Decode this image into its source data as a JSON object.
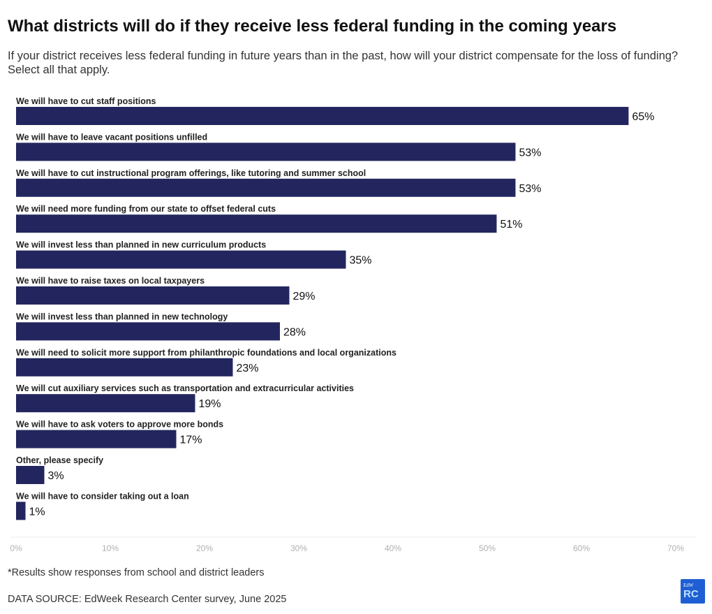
{
  "header": {
    "title": "What districts will do if they receive less federal funding in the coming years",
    "subtitle": "If your district receives less federal funding in future years than in the past, how will your district compensate for the loss of funding? Select all that apply."
  },
  "chart_data": {
    "type": "bar",
    "orientation": "horizontal",
    "title": "What districts will do if they receive less federal funding in the coming years",
    "categories": [
      "We will have to cut staff positions",
      "We will have to leave vacant positions unfilled",
      "We will have to cut instructional program offerings, like tutoring and summer school",
      "We will need more funding from our state to offset federal cuts",
      "We will invest less than planned in new curriculum products",
      "We will have to raise taxes on local taxpayers",
      "We will invest less than planned in new technology",
      "We will need to solicit more support from philanthropic foundations and local organizations",
      "We will cut auxiliary services such as transportation and extracurricular activities",
      "We will have to ask voters to approve more bonds",
      "Other, please specify",
      "We will have to consider taking out a loan"
    ],
    "values": [
      65,
      53,
      53,
      51,
      35,
      29,
      28,
      23,
      19,
      17,
      3,
      1
    ],
    "value_labels": [
      "65%",
      "53%",
      "53%",
      "51%",
      "35%",
      "29%",
      "28%",
      "23%",
      "19%",
      "17%",
      "3%",
      "1%"
    ],
    "xlim": [
      0,
      70
    ],
    "xticks": [
      0,
      10,
      20,
      30,
      40,
      50,
      60,
      70
    ],
    "xtick_labels": [
      "0%",
      "10%",
      "20%",
      "30%",
      "40%",
      "50%",
      "60%",
      "70%"
    ],
    "bar_color": "#23265e",
    "grid": false
  },
  "footer": {
    "note": "*Results show responses from school and district leaders",
    "source": "DATA SOURCE: EdWeek Research Center survey, June 2025"
  },
  "logo": {
    "small_text": "EdW",
    "big_text": "RC",
    "color": "#1f5fd4"
  }
}
